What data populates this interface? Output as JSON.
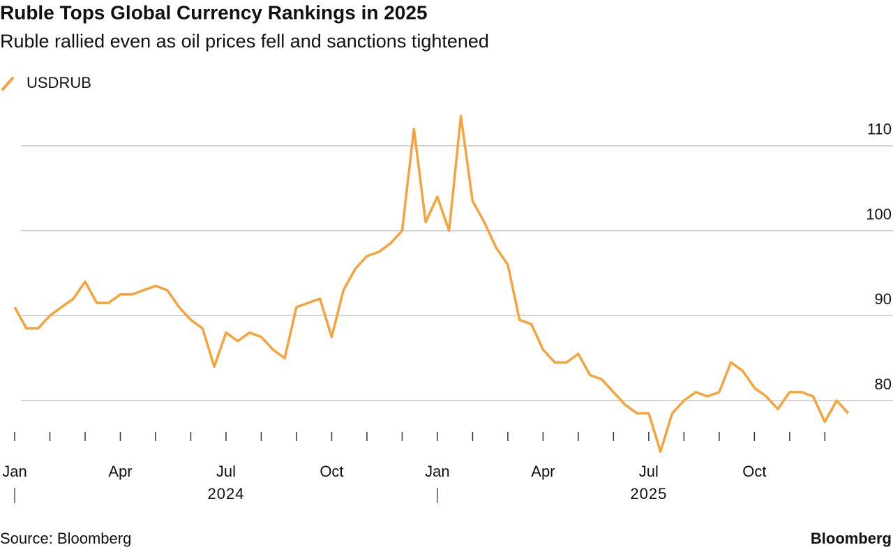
{
  "chart_data": {
    "type": "line",
    "title": "Ruble Tops Global Currency Rankings in 2025",
    "subtitle": "Ruble rallied even as oil prices fell and sanctions tightened",
    "source": "Source: Bloomberg",
    "brand": "Bloomberg",
    "x": [
      "2024-01",
      "2024-01",
      "2024-01",
      "2024-02",
      "2024-02",
      "2024-02",
      "2024-03",
      "2024-03",
      "2024-03",
      "2024-04",
      "2024-04",
      "2024-04",
      "2024-05",
      "2024-05",
      "2024-05",
      "2024-06",
      "2024-06",
      "2024-06",
      "2024-07",
      "2024-07",
      "2024-07",
      "2024-08",
      "2024-08",
      "2024-08",
      "2024-09",
      "2024-09",
      "2024-09",
      "2024-10",
      "2024-10",
      "2024-10",
      "2024-11",
      "2024-11",
      "2024-11",
      "2024-12",
      "2024-12",
      "2024-12",
      "2025-01",
      "2025-01",
      "2025-01",
      "2025-02",
      "2025-02",
      "2025-02",
      "2025-03",
      "2025-03",
      "2025-03",
      "2025-04",
      "2025-04",
      "2025-04",
      "2025-05",
      "2025-05",
      "2025-05",
      "2025-06",
      "2025-06",
      "2025-06",
      "2025-07",
      "2025-07",
      "2025-07",
      "2025-08",
      "2025-08",
      "2025-08",
      "2025-09",
      "2025-09",
      "2025-09",
      "2025-10",
      "2025-10",
      "2025-10",
      "2025-11",
      "2025-11",
      "2025-11",
      "2025-12",
      "2025-12",
      "2025-12"
    ],
    "series": [
      {
        "name": "USDRUB",
        "color": "#f4a43a",
        "values": [
          91,
          88.5,
          88.5,
          90,
          91,
          92,
          94,
          91.5,
          91.5,
          92.5,
          92.5,
          93,
          93.5,
          93,
          91,
          89.5,
          88.5,
          84,
          88,
          87,
          88,
          87.5,
          86,
          85,
          91,
          91.5,
          92,
          87.5,
          93,
          95.5,
          97,
          97.5,
          98.5,
          100,
          112,
          101,
          104,
          100,
          113.5,
          103.5,
          101,
          98,
          96,
          89.5,
          89,
          86,
          84.5,
          84.5,
          85.5,
          83,
          82.5,
          81,
          79.5,
          78.5,
          78.5,
          74,
          78.5,
          80,
          81,
          80.5,
          81,
          84.5,
          83.5,
          81.5,
          80.5,
          79,
          81,
          81,
          80.5,
          77.5,
          80,
          78.5
        ]
      }
    ],
    "ylim": [
      74.5,
      115
    ],
    "yticks": [
      80,
      90,
      100,
      110
    ],
    "grid": true,
    "xticks": [
      {
        "value": "2024-01",
        "label": "Jan"
      },
      {
        "value": "2024-02"
      },
      {
        "value": "2024-03"
      },
      {
        "value": "2024-04",
        "label": "Apr"
      },
      {
        "value": "2024-05"
      },
      {
        "value": "2024-06"
      },
      {
        "value": "2024-07",
        "label": "Jul"
      },
      {
        "value": "2024-08"
      },
      {
        "value": "2024-09"
      },
      {
        "value": "2024-10",
        "label": "Oct"
      },
      {
        "value": "2024-11"
      },
      {
        "value": "2024-12"
      },
      {
        "value": "2025-01",
        "label": "Jan"
      },
      {
        "value": "2025-02"
      },
      {
        "value": "2025-03"
      },
      {
        "value": "2025-04",
        "label": "Apr"
      },
      {
        "value": "2025-05"
      },
      {
        "value": "2025-06"
      },
      {
        "value": "2025-07",
        "label": "Jul"
      },
      {
        "value": "2025-08"
      },
      {
        "value": "2025-09"
      },
      {
        "value": "2025-10",
        "label": "Oct"
      },
      {
        "value": "2025-11"
      },
      {
        "value": "2025-12"
      }
    ],
    "years": [
      "2024",
      "2025"
    ],
    "legend": "top-left"
  }
}
